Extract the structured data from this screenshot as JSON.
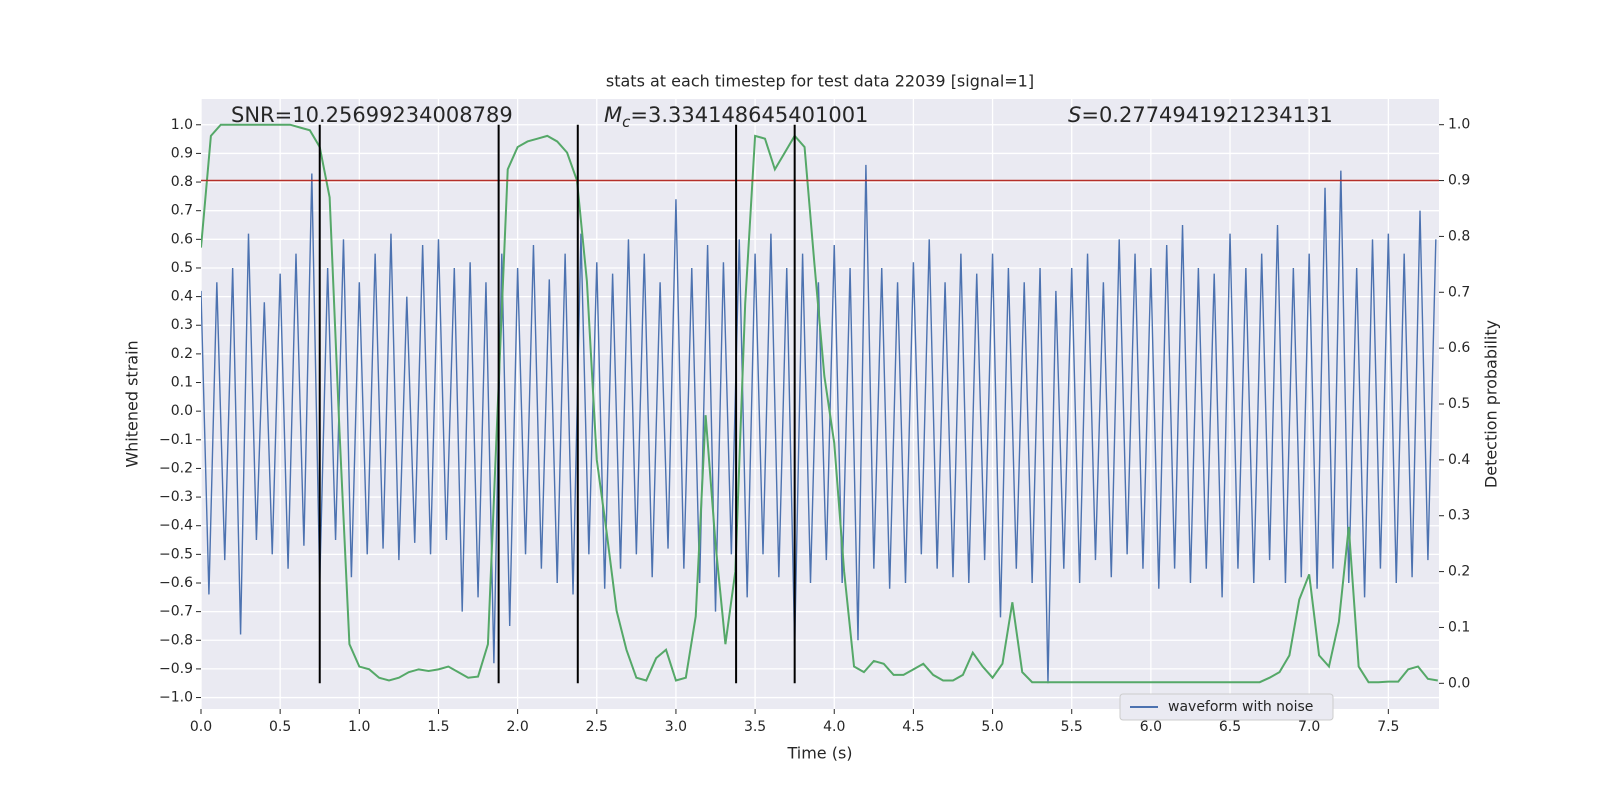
{
  "chart_data": {
    "type": "line",
    "title": "stats at each timestep for test data 22039 [signal=1]",
    "xlabel": "Time (s)",
    "ylabel": "Whitened strain",
    "y2label": "Detection probability",
    "annotations": [
      {
        "text": "SNR=10.25699234008789"
      },
      {
        "symbol": "M",
        "subscript": "c",
        "text": "=3.334148645401001"
      },
      {
        "symbol": "S",
        "text": "=0.2774941921234131"
      }
    ],
    "xlim": [
      0,
      7.82
    ],
    "ylim": [
      -1.04,
      1.09
    ],
    "y2lim": [
      -0.046,
      1.046
    ],
    "grid": true,
    "background": "#eaeaf2",
    "legend": "lower right",
    "xticks": [
      {
        "value": 0,
        "label": "0.0"
      },
      0.5,
      {
        "value": 1,
        "label": "1.0"
      },
      1.5,
      {
        "value": 2,
        "label": "2.0"
      },
      2.5,
      {
        "value": 3,
        "label": "3.0"
      },
      3.5,
      {
        "value": 4,
        "label": "4.0"
      },
      4.5,
      {
        "value": 5,
        "label": "5.0"
      },
      5.5,
      {
        "value": 6,
        "label": "6.0"
      },
      6.5,
      {
        "value": 7,
        "label": "7.0"
      },
      7.5
    ],
    "yticks": [
      {
        "value": -1,
        "label": "−1.0"
      },
      {
        "value": -0.9,
        "label": "−0.9"
      },
      {
        "value": -0.8,
        "label": "−0.8"
      },
      {
        "value": -0.7,
        "label": "−0.7"
      },
      {
        "value": -0.6,
        "label": "−0.6"
      },
      {
        "value": -0.5,
        "label": "−0.5"
      },
      {
        "value": -0.4,
        "label": "−0.4"
      },
      {
        "value": -0.3,
        "label": "−0.3"
      },
      {
        "value": -0.2,
        "label": "−0.2"
      },
      {
        "value": -0.1,
        "label": "−0.1"
      },
      {
        "value": 0,
        "label": "0.0"
      },
      0.1,
      0.2,
      0.3,
      0.4,
      0.5,
      0.6,
      0.7,
      0.8,
      0.9,
      {
        "value": 1,
        "label": "1.0"
      }
    ],
    "y2ticks": [
      {
        "value": 0,
        "label": "0.0"
      },
      0.1,
      0.2,
      0.3,
      0.4,
      0.5,
      0.6,
      0.7,
      0.8,
      0.9,
      {
        "value": 1,
        "label": "1.0"
      }
    ],
    "threshold": {
      "value": 0.9,
      "axis": "y2",
      "color": "#b5302a"
    },
    "vlines": {
      "x": [
        0.75,
        1.88,
        2.38,
        3.38,
        3.75
      ],
      "ymin": 0,
      "ymax": 1,
      "axis": "y2",
      "color": "#000000"
    },
    "series": [
      {
        "name": "waveform with noise",
        "color": "#4c72b0",
        "x": [
          0,
          0.05,
          0.1,
          0.15,
          0.2,
          0.25,
          0.3,
          0.35,
          0.4,
          0.45,
          0.5,
          0.55,
          0.6,
          0.65,
          0.7,
          0.75,
          0.8,
          0.85,
          0.9,
          0.95,
          1,
          1.05,
          1.1,
          1.15,
          1.2,
          1.25,
          1.3,
          1.35,
          1.4,
          1.45,
          1.5,
          1.55,
          1.6,
          1.65,
          1.7,
          1.75,
          1.8,
          1.85,
          1.9,
          1.95,
          2,
          2.05,
          2.1,
          2.15,
          2.2,
          2.25,
          2.3,
          2.35,
          2.4,
          2.45,
          2.5,
          2.55,
          2.6,
          2.65,
          2.7,
          2.75,
          2.8,
          2.85,
          2.9,
          2.95,
          3,
          3.05,
          3.1,
          3.15,
          3.2,
          3.25,
          3.3,
          3.35,
          3.4,
          3.45,
          3.5,
          3.55,
          3.6,
          3.65,
          3.7,
          3.75,
          3.8,
          3.85,
          3.9,
          3.95,
          4,
          4.05,
          4.1,
          4.15,
          4.2,
          4.25,
          4.3,
          4.35,
          4.4,
          4.45,
          4.5,
          4.55,
          4.6,
          4.65,
          4.7,
          4.75,
          4.8,
          4.85,
          4.9,
          4.95,
          5,
          5.05,
          5.1,
          5.15,
          5.2,
          5.25,
          5.3,
          5.35,
          5.4,
          5.45,
          5.5,
          5.55,
          5.6,
          5.65,
          5.7,
          5.75,
          5.8,
          5.85,
          5.9,
          5.95,
          6,
          6.05,
          6.1,
          6.15,
          6.2,
          6.25,
          6.3,
          6.35,
          6.4,
          6.45,
          6.5,
          6.55,
          6.6,
          6.65,
          6.7,
          6.75,
          6.8,
          6.85,
          6.9,
          6.95,
          7,
          7.05,
          7.1,
          7.15,
          7.2,
          7.25,
          7.3,
          7.35,
          7.4,
          7.45,
          7.5,
          7.55,
          7.6,
          7.65,
          7.7,
          7.75,
          7.8
        ],
        "values": [
          0.42,
          -0.64,
          0.45,
          -0.52,
          0.5,
          -0.78,
          0.62,
          -0.45,
          0.38,
          -0.5,
          0.48,
          -0.55,
          0.55,
          -0.47,
          0.83,
          -0.6,
          0.5,
          -0.45,
          0.6,
          -0.58,
          0.45,
          -0.5,
          0.55,
          -0.48,
          0.62,
          -0.52,
          0.4,
          -0.46,
          0.58,
          -0.5,
          0.6,
          -0.45,
          0.5,
          -0.7,
          0.52,
          -0.65,
          0.45,
          -0.88,
          0.55,
          -0.75,
          0.5,
          -0.5,
          0.58,
          -0.55,
          0.46,
          -0.6,
          0.55,
          -0.64,
          0.62,
          -0.5,
          0.52,
          -0.62,
          0.48,
          -0.55,
          0.6,
          -0.5,
          0.55,
          -0.58,
          0.45,
          -0.48,
          0.74,
          -0.55,
          0.5,
          -0.6,
          0.58,
          -0.7,
          0.52,
          -0.5,
          0.6,
          -0.65,
          0.55,
          -0.5,
          0.62,
          -0.58,
          0.5,
          -0.82,
          0.55,
          -0.6,
          0.45,
          -0.52,
          0.58,
          -0.6,
          0.5,
          -0.8,
          0.86,
          -0.55,
          0.5,
          -0.62,
          0.45,
          -0.6,
          0.52,
          -0.5,
          0.6,
          -0.55,
          0.45,
          -0.58,
          0.55,
          -0.6,
          0.48,
          -0.52,
          0.55,
          -0.72,
          0.5,
          -0.55,
          0.45,
          -0.6,
          0.5,
          -0.95,
          0.42,
          -0.55,
          0.5,
          -0.6,
          0.55,
          -0.52,
          0.45,
          -0.58,
          0.6,
          -0.5,
          0.55,
          -0.55,
          0.5,
          -0.62,
          0.58,
          -0.55,
          0.65,
          -0.6,
          0.5,
          -0.55,
          0.48,
          -0.65,
          0.62,
          -0.55,
          0.5,
          -0.6,
          0.55,
          -0.52,
          0.65,
          -0.6,
          0.5,
          -0.58,
          0.55,
          -0.62,
          0.78,
          -0.55,
          0.84,
          -0.6,
          0.5,
          -0.65,
          0.6,
          -0.55,
          0.62,
          -0.6,
          0.55,
          -0.58,
          0.7,
          -0.52,
          0.6
        ]
      },
      {
        "color": "#55a868",
        "axis": "y2",
        "x": [
          0,
          0.0625,
          0.125,
          0.1875,
          0.25,
          0.3125,
          0.375,
          0.4375,
          0.5,
          0.5625,
          0.625,
          0.6875,
          0.75,
          0.8125,
          0.875,
          0.9375,
          1,
          1.0625,
          1.125,
          1.1875,
          1.25,
          1.3125,
          1.375,
          1.4375,
          1.5,
          1.5625,
          1.625,
          1.6875,
          1.75,
          1.8125,
          1.875,
          1.9375,
          2,
          2.0625,
          2.125,
          2.1875,
          2.25,
          2.3125,
          2.375,
          2.4375,
          2.5,
          2.5625,
          2.625,
          2.6875,
          2.75,
          2.8125,
          2.875,
          2.9375,
          3,
          3.0625,
          3.125,
          3.1875,
          3.25,
          3.3125,
          3.375,
          3.4375,
          3.5,
          3.5625,
          3.625,
          3.6875,
          3.75,
          3.8125,
          3.875,
          3.9375,
          4,
          4.0625,
          4.125,
          4.1875,
          4.25,
          4.3125,
          4.375,
          4.4375,
          4.5,
          4.5625,
          4.625,
          4.6875,
          4.75,
          4.8125,
          4.875,
          4.9375,
          5,
          5.0625,
          5.125,
          5.1875,
          5.25,
          5.3125,
          5.375,
          5.4375,
          5.5,
          5.5625,
          5.625,
          5.6875,
          5.75,
          5.8125,
          5.875,
          5.9375,
          6,
          6.0625,
          6.125,
          6.1875,
          6.25,
          6.3125,
          6.375,
          6.4375,
          6.5,
          6.5625,
          6.625,
          6.6875,
          6.75,
          6.8125,
          6.875,
          6.9375,
          7,
          7.0625,
          7.125,
          7.1875,
          7.25,
          7.3125,
          7.375,
          7.4375,
          7.5,
          7.5625,
          7.625,
          7.6875,
          7.75,
          7.8125
        ],
        "values": [
          0.78,
          0.98,
          1.0,
          1.0,
          1.0,
          1.0,
          1.0,
          1.0,
          1.0,
          1.0,
          0.995,
          0.99,
          0.96,
          0.87,
          0.45,
          0.07,
          0.03,
          0.025,
          0.01,
          0.005,
          0.01,
          0.02,
          0.025,
          0.022,
          0.025,
          0.03,
          0.02,
          0.01,
          0.012,
          0.07,
          0.5,
          0.92,
          0.96,
          0.97,
          0.975,
          0.98,
          0.97,
          0.95,
          0.9,
          0.72,
          0.4,
          0.27,
          0.13,
          0.06,
          0.01,
          0.005,
          0.045,
          0.06,
          0.005,
          0.01,
          0.12,
          0.48,
          0.25,
          0.07,
          0.2,
          0.68,
          0.98,
          0.975,
          0.92,
          0.95,
          0.98,
          0.96,
          0.75,
          0.55,
          0.43,
          0.2,
          0.03,
          0.02,
          0.04,
          0.035,
          0.015,
          0.015,
          0.025,
          0.035,
          0.015,
          0.005,
          0.005,
          0.015,
          0.055,
          0.03,
          0.01,
          0.035,
          0.145,
          0.02,
          0.002,
          0.002,
          0.002,
          0.002,
          0.002,
          0.002,
          0.002,
          0.002,
          0.002,
          0.002,
          0.002,
          0.002,
          0.002,
          0.002,
          0.002,
          0.002,
          0.002,
          0.002,
          0.002,
          0.002,
          0.002,
          0.002,
          0.002,
          0.002,
          0.01,
          0.02,
          0.05,
          0.15,
          0.195,
          0.05,
          0.03,
          0.11,
          0.28,
          0.03,
          0.002,
          0.002,
          0.003,
          0.003,
          0.025,
          0.03,
          0.008,
          0.005
        ]
      }
    ]
  }
}
